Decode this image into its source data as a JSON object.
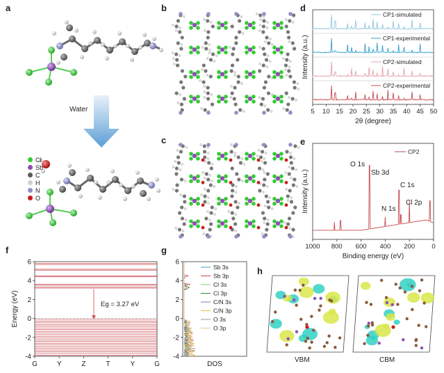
{
  "panels": {
    "a": {
      "letter": "a",
      "arrow_label": "Water",
      "legend": [
        {
          "symbol": "Cl",
          "color": "#33cc33"
        },
        {
          "symbol": "Sb",
          "color": "#8e4fb3"
        },
        {
          "symbol": "C",
          "color": "#5a5a5a"
        },
        {
          "symbol": "H",
          "color": "#d0d0d0"
        },
        {
          "symbol": "N",
          "color": "#8e90c8"
        },
        {
          "symbol": "O",
          "color": "#c81e1e"
        }
      ]
    },
    "b": {
      "letter": "b"
    },
    "c": {
      "letter": "c"
    },
    "d": {
      "letter": "d"
    },
    "e": {
      "letter": "e"
    },
    "f": {
      "letter": "f"
    },
    "g": {
      "letter": "g"
    },
    "h": {
      "letter": "h",
      "labels": [
        "VBM",
        "CBM"
      ]
    }
  },
  "chart_data": [
    {
      "id": "d",
      "type": "line",
      "xlabel": "2θ (degree)",
      "ylabel": "Intensity (a.u.)",
      "xlim": [
        5,
        50
      ],
      "x_ticks": [
        5,
        10,
        15,
        20,
        25,
        30,
        35,
        40,
        45,
        50
      ],
      "series": [
        {
          "name": "CP1-simulated",
          "color": "#8fc4e0"
        },
        {
          "name": "CP1-experimental",
          "color": "#2f9ec9"
        },
        {
          "name": "CP2-simulated",
          "color": "#e2a0a8"
        },
        {
          "name": "CP2-experimental",
          "color": "#c8484f"
        }
      ],
      "peaks": [
        12,
        13.4,
        18,
        19.5,
        21,
        24.5,
        26,
        27.5,
        29,
        31,
        33,
        35,
        37,
        39,
        42,
        45
      ]
    },
    {
      "id": "e",
      "type": "line",
      "xlabel": "Binding energy (eV)",
      "ylabel": "Intensity (a.u.)",
      "xlim": [
        1000,
        0
      ],
      "x_ticks": [
        1000,
        800,
        600,
        400,
        200,
        0
      ],
      "series": [
        {
          "name": "CP2",
          "color": "#c8484f"
        }
      ],
      "annotations": [
        "O 1s",
        "Sb 3d",
        "C 1s",
        "N 1s",
        "Cl 2p"
      ],
      "peaks": [
        {
          "x": 532,
          "y": 0.95
        },
        {
          "x": 530,
          "y": 0.85
        },
        {
          "x": 285,
          "y": 0.55
        },
        {
          "x": 400,
          "y": 0.22
        },
        {
          "x": 200,
          "y": 0.42
        },
        {
          "x": 270,
          "y": 0.25
        }
      ]
    },
    {
      "id": "f",
      "type": "line",
      "ylabel": "Energy (eV)",
      "ylim": [
        -4,
        6
      ],
      "y_ticks": [
        -4,
        -2,
        0,
        2,
        4,
        6
      ],
      "x_ticks": [
        "G",
        "Y",
        "Z",
        "T",
        "Y",
        "G"
      ],
      "annotation": "Eg = 3.27 eV",
      "band_gap": 3.27,
      "color": "#c8484f"
    },
    {
      "id": "g",
      "type": "line",
      "xlabel": "DOS",
      "ylim": [
        -4,
        6
      ],
      "series": [
        {
          "name": "Sb 3s",
          "color": "#3a9ec9"
        },
        {
          "name": "Sb 3p",
          "color": "#c8484f"
        },
        {
          "name": "Cl 3s",
          "color": "#7ccf7c"
        },
        {
          "name": "Cl 3p",
          "color": "#2b8a2b"
        },
        {
          "name": "C/N 3s",
          "color": "#8a6fc2"
        },
        {
          "name": "C/N 3p",
          "color": "#e8b84a"
        },
        {
          "name": "O 3s",
          "color": "#9a9a9a"
        },
        {
          "name": "O 3p",
          "color": "#e8c48a"
        }
      ]
    }
  ]
}
